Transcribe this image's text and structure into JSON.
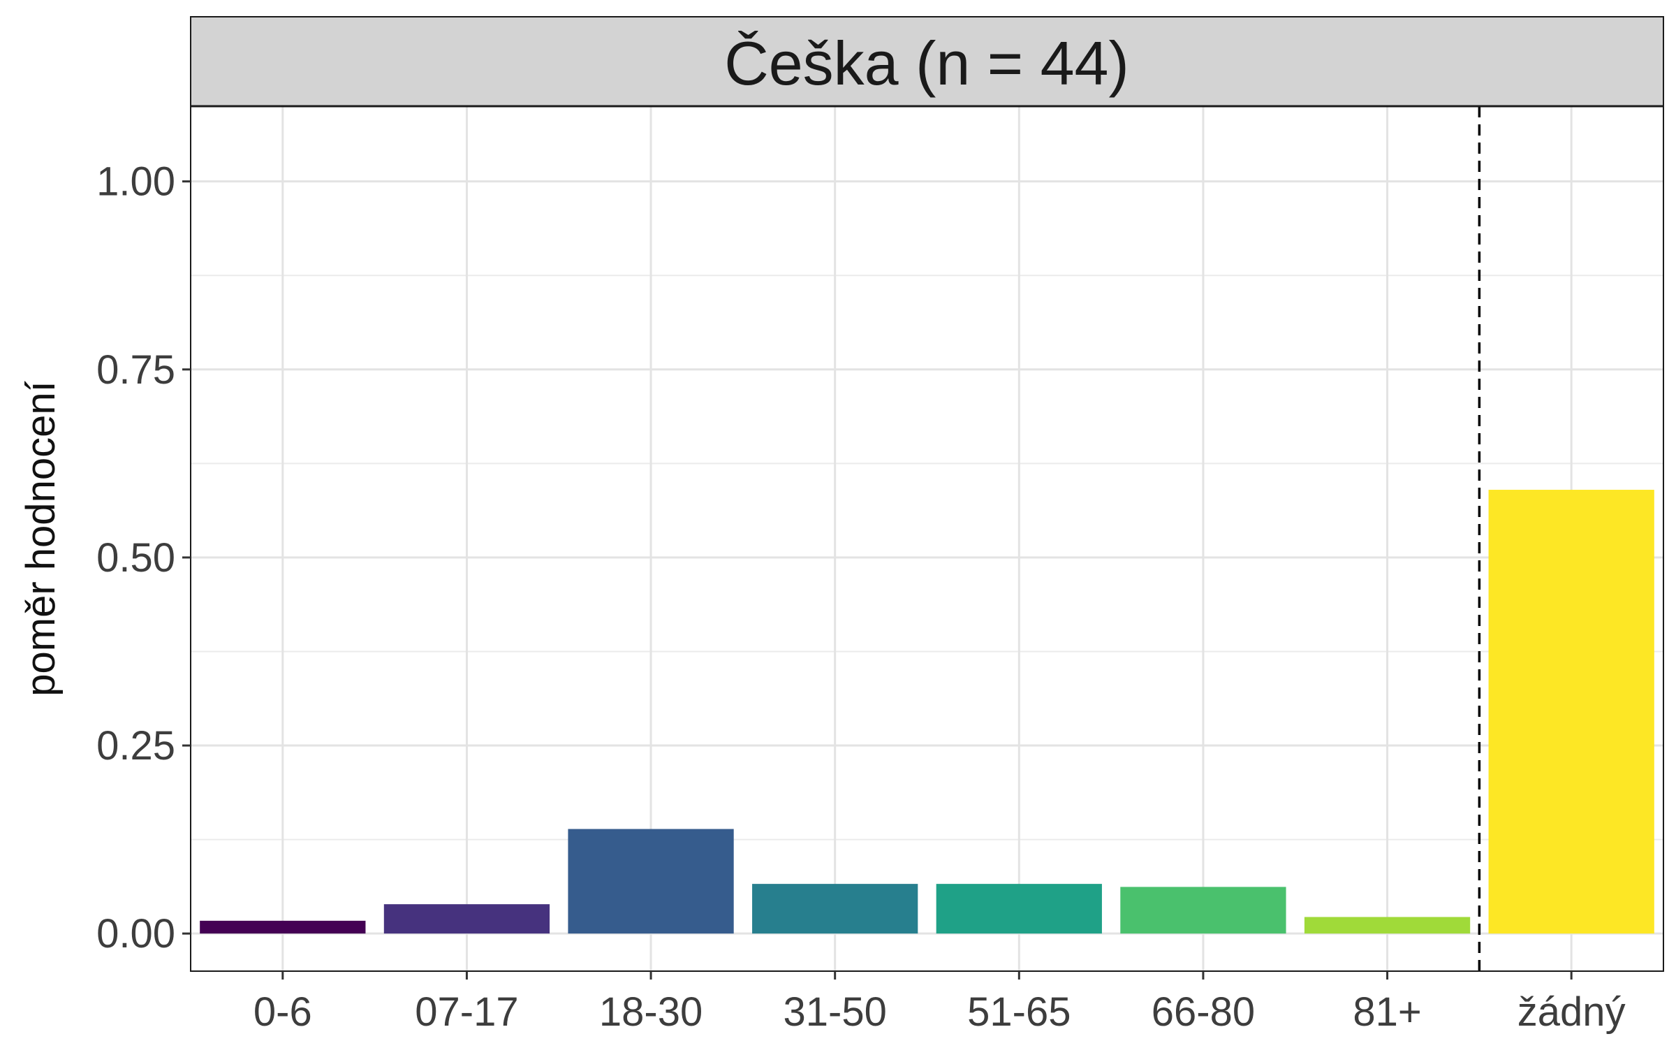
{
  "chart_data": {
    "type": "bar",
    "facet_title": "Češka (n = 44)",
    "xlabel": "",
    "ylabel": "poměr hodnocení",
    "categories": [
      "0-6",
      "07-17",
      "18-30",
      "31-50",
      "51-65",
      "66-80",
      "81+",
      "žádný"
    ],
    "values": [
      0.017,
      0.039,
      0.139,
      0.066,
      0.066,
      0.062,
      0.022,
      0.59
    ],
    "colors": [
      "#440154",
      "#46327e",
      "#365c8d",
      "#277f8e",
      "#1fa187",
      "#4ac16d",
      "#a0da39",
      "#fde725"
    ],
    "ylim": [
      -0.05,
      1.1
    ],
    "yticks": [
      0.0,
      0.25,
      0.5,
      0.75,
      1.0
    ],
    "ytick_labels": [
      "0.00",
      "0.25",
      "0.50",
      "0.75",
      "1.00"
    ],
    "grid": true,
    "reference_line": {
      "type": "vertical",
      "between_categories": [
        "81+",
        "žádný"
      ],
      "style": "dashed",
      "color": "#000000"
    },
    "panel_strip_color": "#d3d3d3"
  }
}
